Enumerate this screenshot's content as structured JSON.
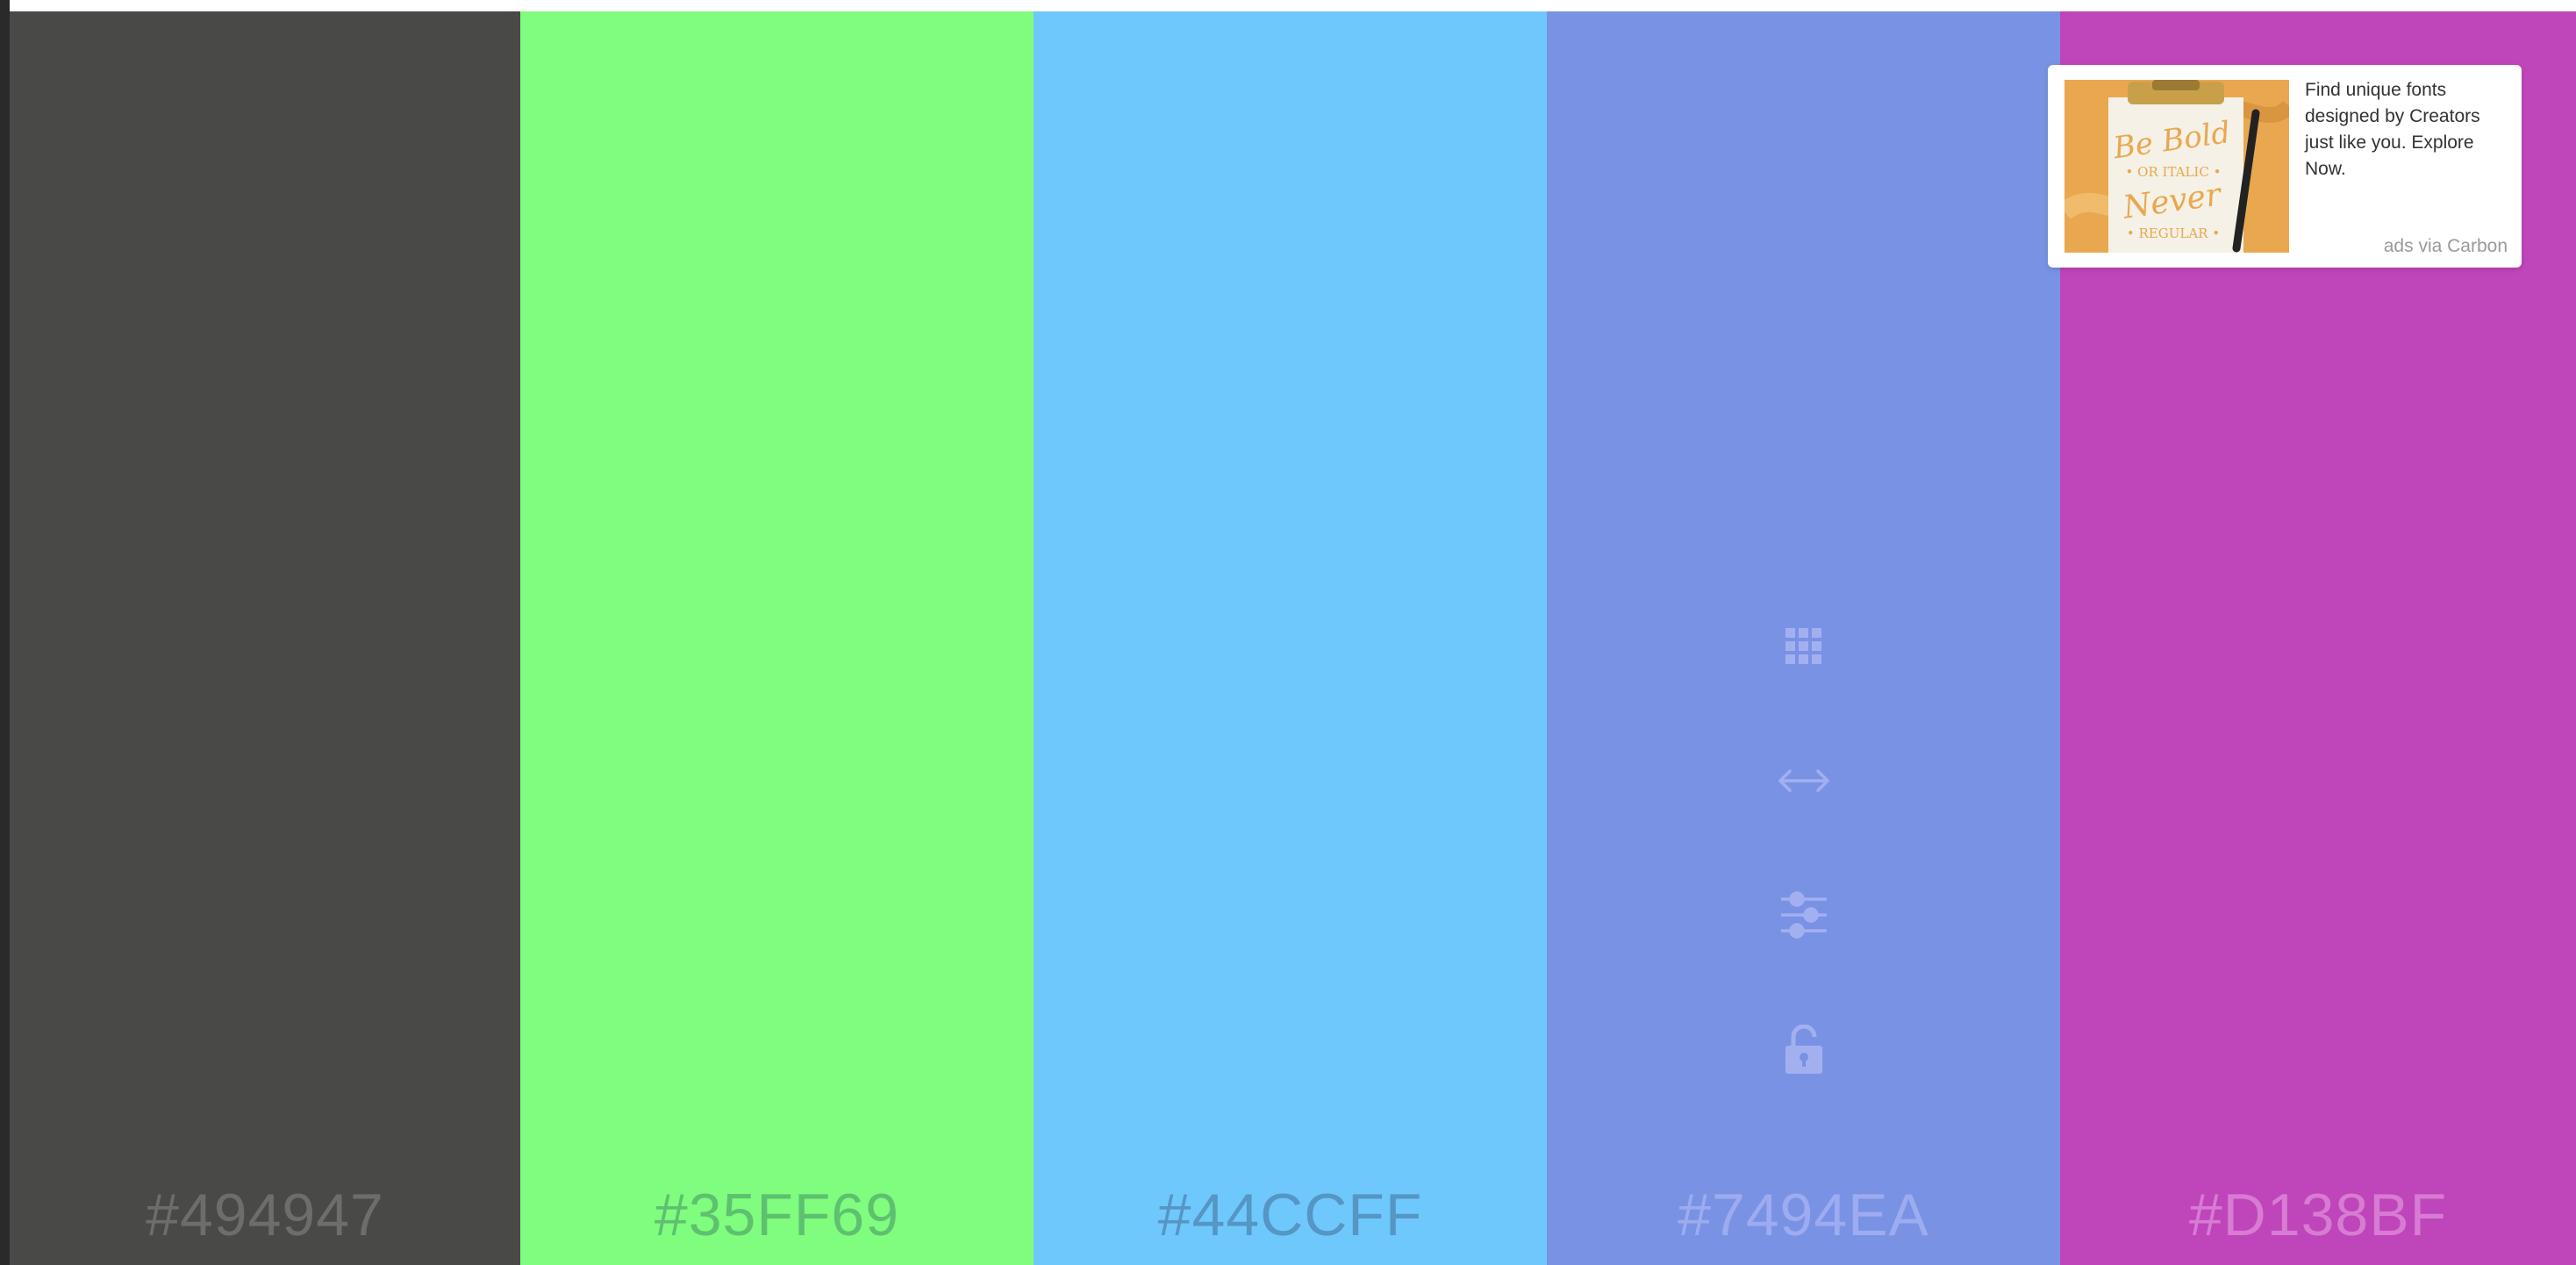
{
  "colors": {
    "white": "#ffffff",
    "tool_icon": "#a3b0f0"
  },
  "palette": [
    {
      "hex": "#494947",
      "fill": "#494947",
      "label_color": "#6d6d6b"
    },
    {
      "hex": "#35FF69",
      "fill": "#80FC7F",
      "label_color": "#5dc170"
    },
    {
      "hex": "#44CCFF",
      "fill": "#6FC8FC",
      "label_color": "#5596c4"
    },
    {
      "hex": "#7494EA",
      "fill": "#7A92E4",
      "label_color": "#9dabf0"
    },
    {
      "hex": "#D138BF",
      "fill": "#BF45BA",
      "label_color": "#d77bd3"
    }
  ],
  "tools": [
    {
      "name": "grid-icon",
      "title": "View shades"
    },
    {
      "name": "drag-arrows-icon",
      "title": "Drag"
    },
    {
      "name": "adjust-sliders-icon",
      "title": "Adjust"
    },
    {
      "name": "lock-icon",
      "title": "Lock"
    }
  ],
  "ad": {
    "text": "Find unique fonts designed by Creators just like you. Explore Now.",
    "via": "ads via Carbon",
    "image_lettering": [
      "Be Bold",
      "OR ITALIC",
      "Never",
      "REGULAR"
    ]
  }
}
